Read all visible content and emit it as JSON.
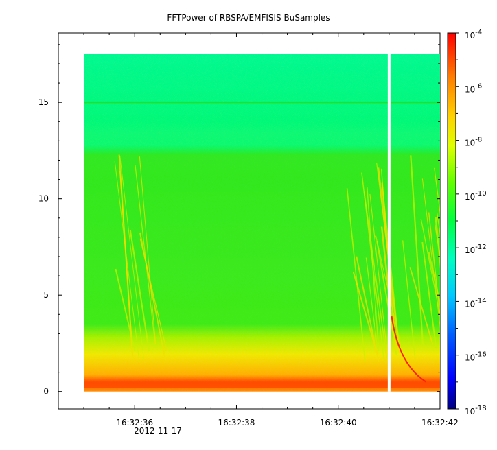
{
  "chart_data": {
    "type": "heatmap",
    "title": "FFTPower of RBSPA/EMFISIS  BuSamples",
    "xlabel": "",
    "ylabel": "",
    "x_ticks": [
      "16:32:36",
      "16:32:38",
      "16:32:40",
      "16:32:42"
    ],
    "x_date_label": "2012-11-17",
    "x_range_seconds": [
      34.5,
      42.0
    ],
    "x_data_range_seconds": [
      35.0,
      42.0
    ],
    "gap_at_seconds": 41.0,
    "y_ticks": [
      0,
      5,
      10,
      15
    ],
    "ylim": [
      -0.9,
      18.6
    ],
    "y_data_range": [
      0,
      17.5
    ],
    "colorbar": {
      "scale": "log",
      "range_exponents": [
        -18,
        -4
      ],
      "tick_base": "10",
      "tick_exponents": [
        "-4",
        "-6",
        "-8",
        "-10",
        "-12",
        "-14",
        "-16",
        "-18"
      ],
      "colormap": [
        "#000080",
        "#0000ff",
        "#00a0ff",
        "#00ffff",
        "#00ff80",
        "#33ff00",
        "#ccff00",
        "#ffff00",
        "#ffaa00",
        "#ff0000"
      ]
    },
    "features": {
      "band_top_freq": 12.3,
      "line_freq": 15.0,
      "low_band_top": 2.0,
      "strong_band": [
        0.2,
        0.5
      ]
    },
    "grid": false,
    "legend": "colorbar-right"
  }
}
